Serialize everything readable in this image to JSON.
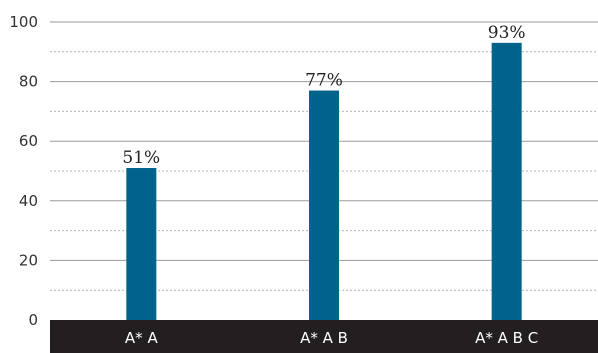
{
  "chart_data": {
    "type": "bar",
    "categories": [
      "A* A",
      "A* A B",
      "A* A B C"
    ],
    "values": [
      51,
      77,
      93
    ],
    "data_labels": [
      "51%",
      "77%",
      "93%"
    ],
    "title": "",
    "xlabel": "",
    "ylabel": "",
    "ylim": [
      0,
      100
    ],
    "yticks": [
      "0",
      "20",
      "40",
      "60",
      "80",
      "100"
    ],
    "grid": "horizontal, dashed minor lines",
    "colors": {
      "bar": "#00638C",
      "axis_band": "#231F20",
      "grid_major": "#9A9A9A",
      "grid_minor": "#B5B5B5"
    }
  }
}
